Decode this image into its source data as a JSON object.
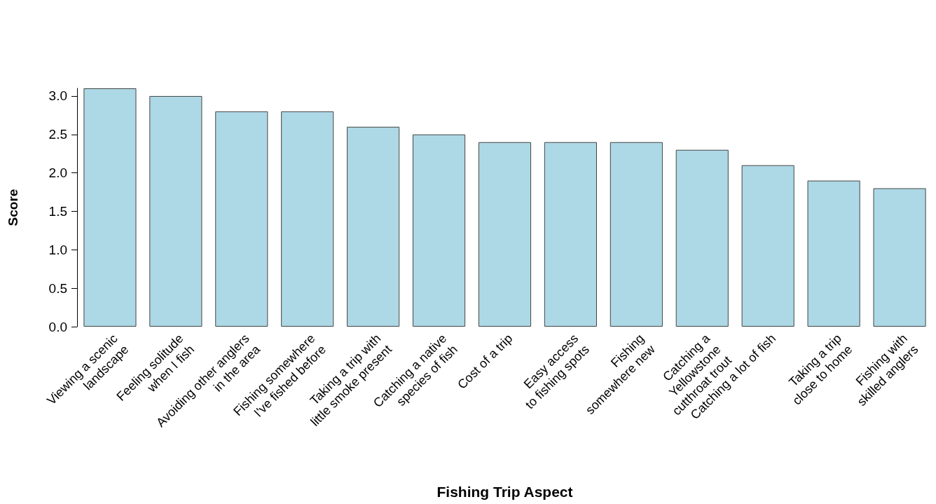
{
  "chart_data": {
    "type": "bar",
    "xlabel": "Fishing Trip Aspect",
    "ylabel": "Score",
    "categories": [
      "Viewing a scenic\nlandscape",
      "Feeling solitude\nwhen I fish",
      "Avoiding other anglers\nin the area",
      "Fishing somewhere\nI've fished before",
      "Taking a trip with\nlittle smoke present",
      "Catching a native\nspecies of fish",
      "Cost of a trip",
      "Easy access\nto fishing spots",
      "Fishing\nsomewhere new",
      "Catching a\nYellowstone\ncutthroat trout",
      "Catching a lot of fish",
      "Taking a trip\nclose to home",
      "Fishing with\nskilled anglers"
    ],
    "values": [
      3.1,
      3.0,
      2.8,
      2.8,
      2.6,
      2.5,
      2.4,
      2.4,
      2.4,
      2.3,
      2.1,
      1.9,
      1.8
    ],
    "color": "#add8e6",
    "ylim": [
      0,
      3.1
    ],
    "yticks": [
      {
        "value": 0,
        "label": "0.0"
      },
      0.5,
      {
        "value": 1,
        "label": "1.0"
      },
      1.5,
      {
        "value": 2,
        "label": "2.0"
      },
      2.5,
      {
        "value": 3,
        "label": "3.0"
      }
    ],
    "grid": false
  }
}
